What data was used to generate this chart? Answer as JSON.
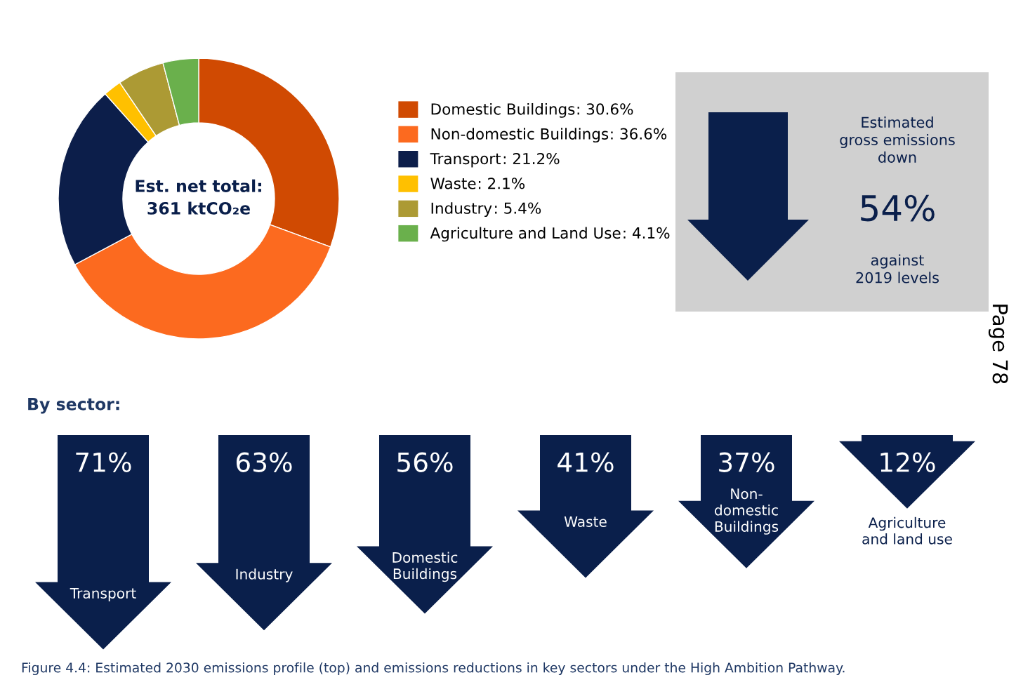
{
  "chart_data": [
    {
      "type": "donut",
      "categories": [
        "Domestic Buildings",
        "Non-domestic Buildings",
        "Transport",
        "Waste",
        "Industry",
        "Agriculture and Land Use"
      ],
      "values": [
        30.6,
        36.6,
        21.2,
        2.1,
        5.4,
        4.1
      ],
      "value_labels": [
        ": 30.6%",
        ": 36.6%",
        ": 21.2%",
        ": 2.1%",
        ": 5.4%",
        ": 4.1%"
      ],
      "colors": [
        "#d04a02",
        "#fc6a1f",
        "#0c1e4a",
        "#ffc000",
        "#ac9a34",
        "#6ab04c"
      ],
      "annotations": [
        "Est. net total:\n361 ktCO₂e"
      ],
      "legend": "right"
    },
    {
      "type": "other",
      "annotations": [
        "Estimated\ngross emissions\ndown",
        "54%",
        "against\n2019 levels"
      ]
    },
    {
      "type": "other",
      "title": "By sector:",
      "categories": [
        "Transport",
        "Industry",
        "Domestic\nBuildings",
        "Waste",
        "Non-\ndomestic\nBuildings",
        "Agriculture\nand land use"
      ],
      "values": [
        71,
        63,
        56,
        41,
        37,
        12
      ],
      "value_labels": [
        "71%",
        "63%",
        "56%",
        "41%",
        "37%",
        "12%"
      ],
      "color": "#0a1f4b",
      "annotations": [
        "Figure 4.4: Estimated 2030 emissions profile (top) and emissions reductions in key sectors under the High Ambition Pathway.",
        "Page 78"
      ]
    }
  ]
}
